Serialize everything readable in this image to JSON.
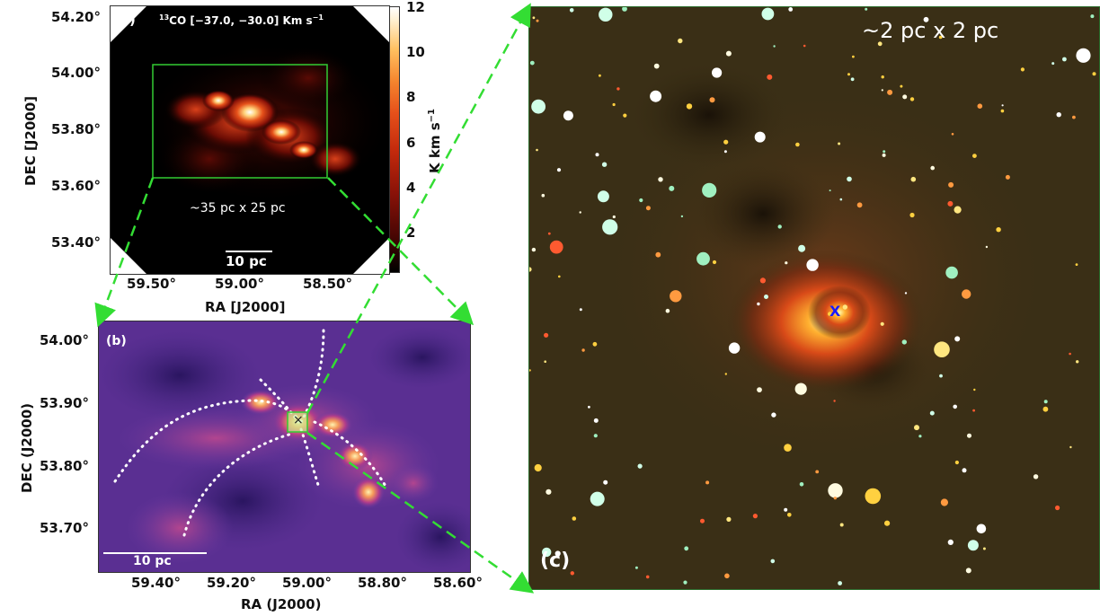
{
  "panel_a": {
    "tag": "(a)",
    "title_prefix": "13",
    "title_main": "CO [−37.0, −30.0] Km s",
    "title_sup": "−1",
    "annotation": "~35 pc x 25 pc",
    "scalebar": "10 pc",
    "xlabel": "RA [J2000]",
    "ylabel": "DEC [J2000]",
    "xticks": [
      "59.50°",
      "59.00°",
      "58.50°"
    ],
    "yticks": [
      "54.20°",
      "54.00°",
      "53.80°",
      "53.60°",
      "53.40°"
    ],
    "colorbar_ticks": [
      "12",
      "10",
      "8",
      "6",
      "4",
      "2"
    ],
    "colorbar_label": "K km s",
    "colorbar_label_sup": "−1",
    "box_color": "#33cc33"
  },
  "panel_b": {
    "tag": "(b)",
    "scalebar": "10 pc",
    "marker": "×",
    "xlabel": "RA (J2000)",
    "ylabel": "DEC (J2000)",
    "xticks": [
      "59.40°",
      "59.20°",
      "59.00°",
      "58.80°",
      "58.60°"
    ],
    "yticks": [
      "54.00°",
      "53.90°",
      "53.80°",
      "53.70°"
    ]
  },
  "panel_c": {
    "tag": "(c)",
    "annotation": "~2 pc x 2 pc",
    "marker": "X",
    "marker_color": "#1a1aff"
  },
  "connector_color": "#33dd33"
}
